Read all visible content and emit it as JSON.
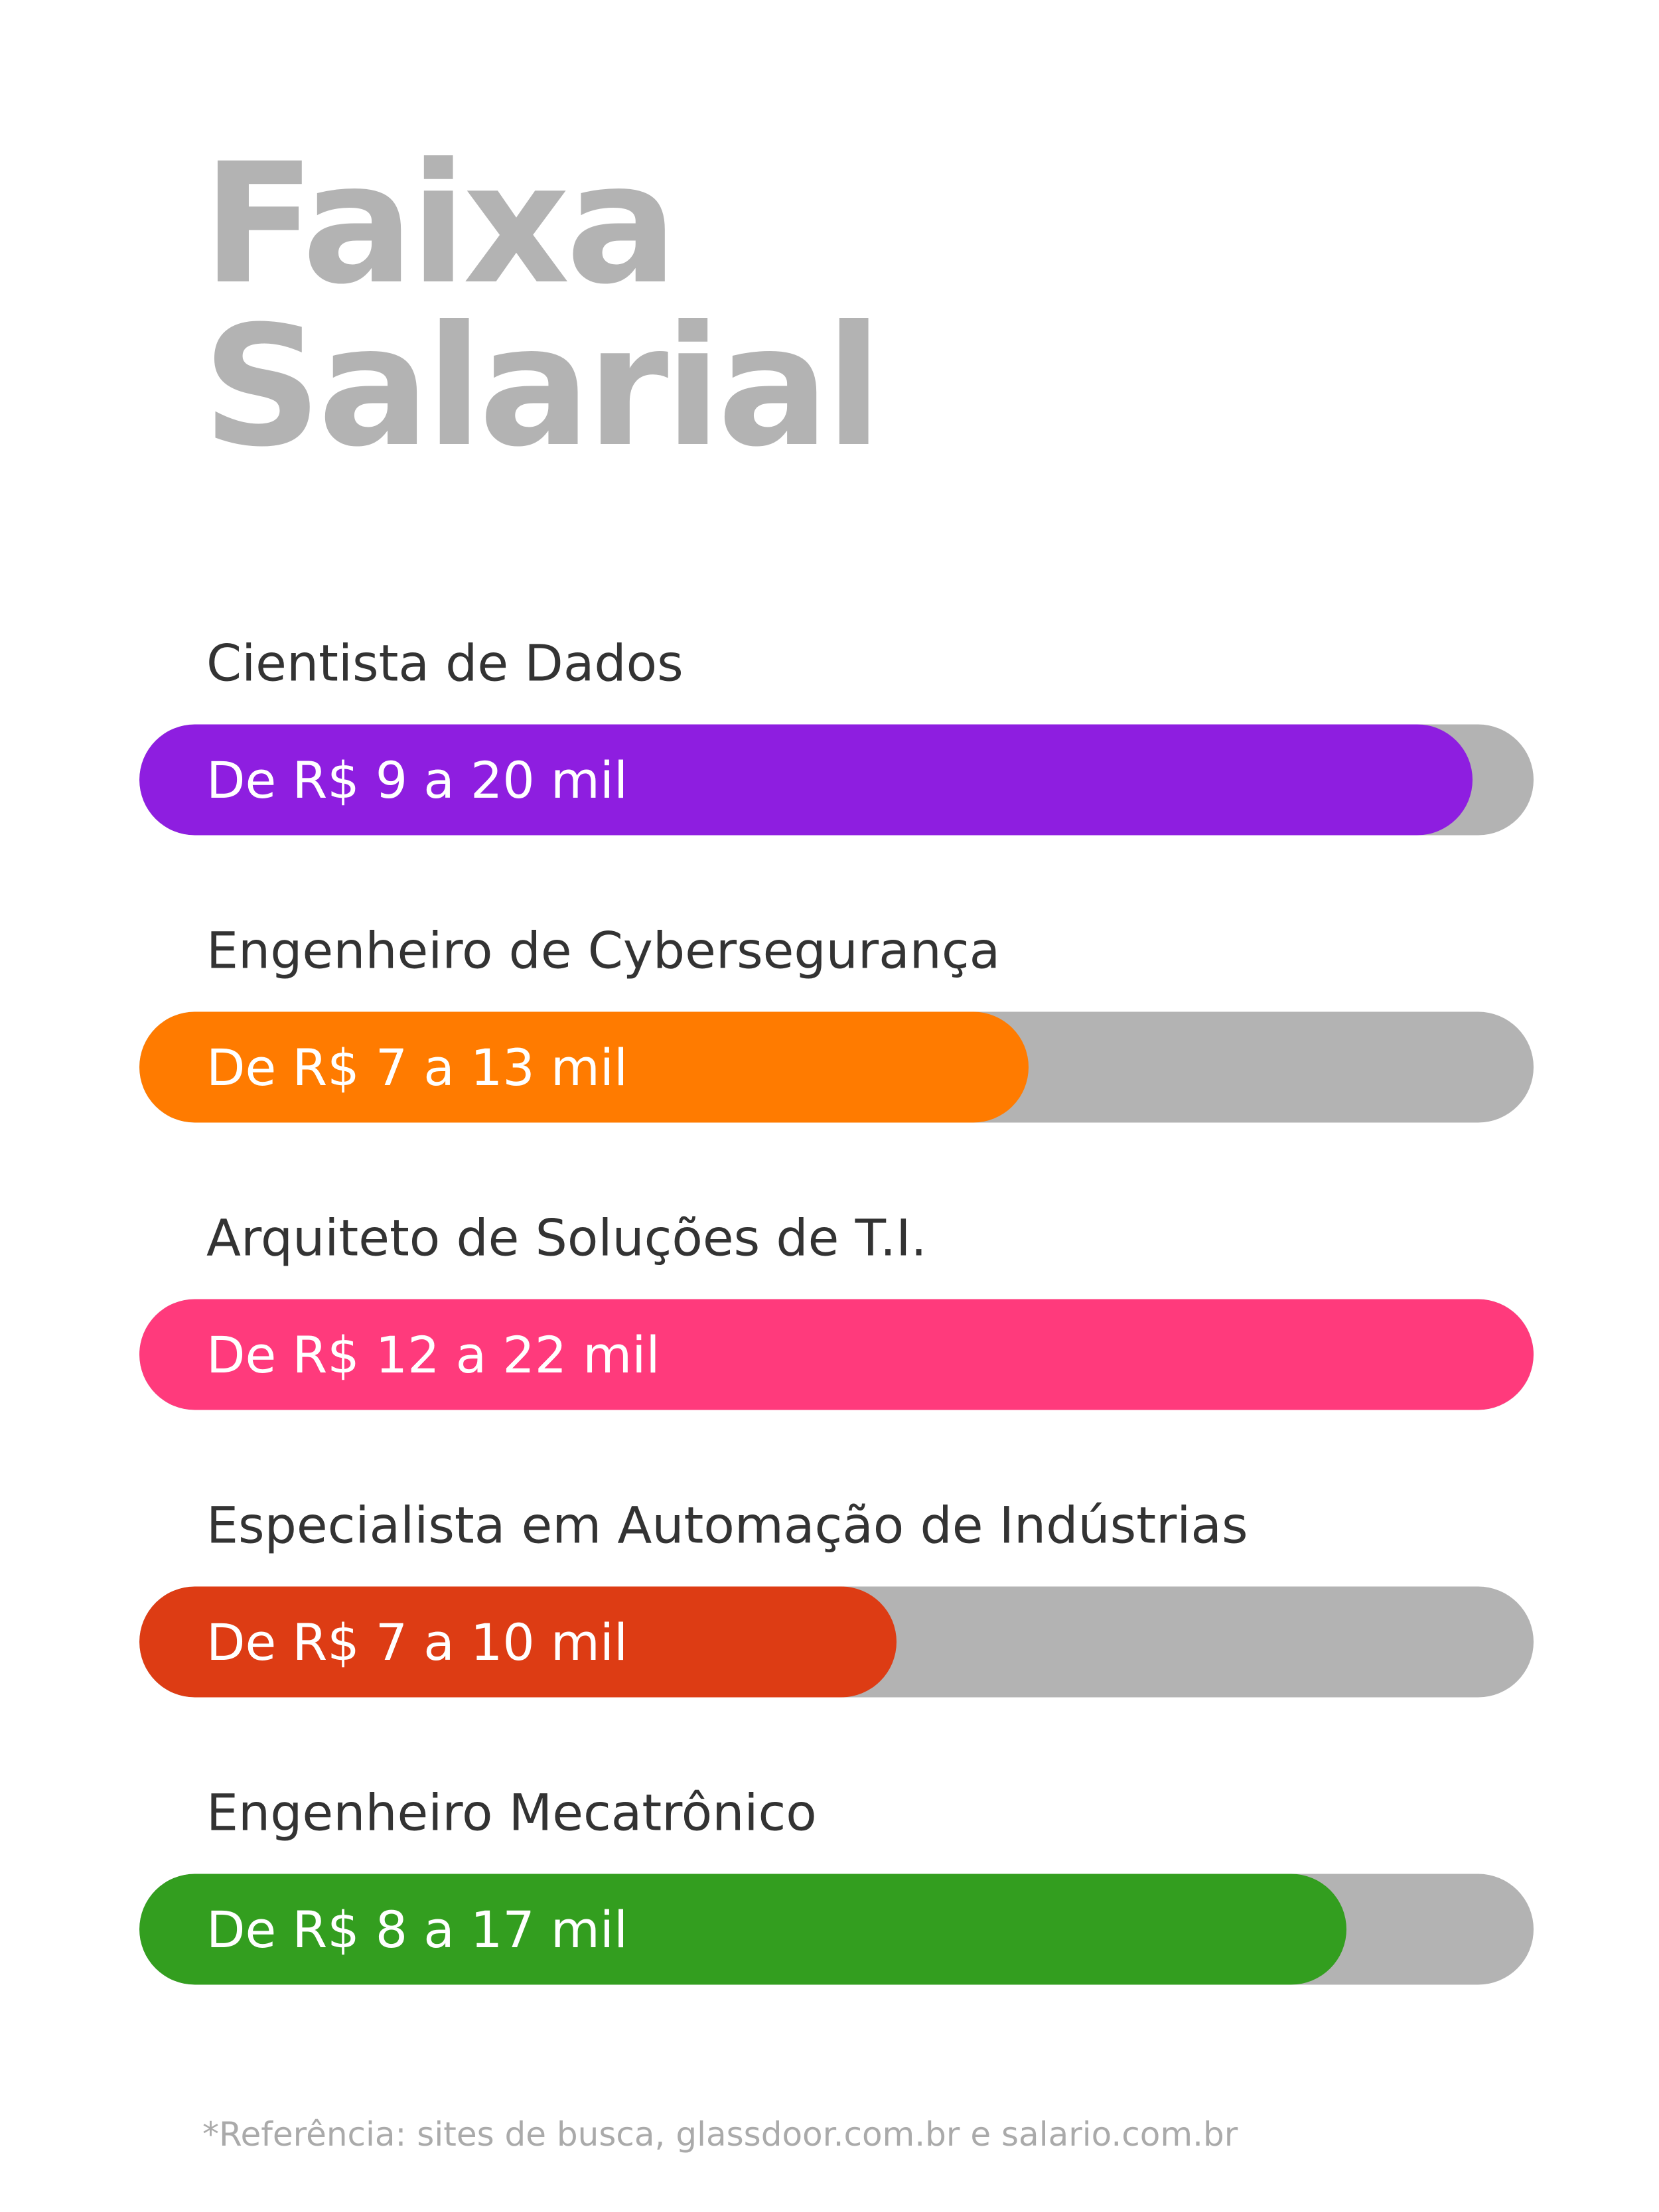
{
  "chart_data": {
    "type": "bar",
    "title": "Faixa Salarial",
    "categories": [
      "Cientista de Dados",
      "Engenheiro de Cybersegurança",
      "Arquiteto de Soluções de T.I.",
      "Especialista em Automação de Indústrias",
      "Engenheiro Mecatrônico"
    ],
    "labels": [
      "De R$ 9 a 20 mil",
      "De R$ 7 a 13 mil",
      "De R$ 12 a 22 mil",
      "De R$ 7 a 10 mil",
      "De R$ 8 a 17 mil"
    ],
    "values": [
      95.6,
      63.8,
      100,
      54.3,
      86.6
    ],
    "colors": [
      "#8e1ee0",
      "#ff7b00",
      "#ff3a7c",
      "#dd3c14",
      "#339e1f"
    ],
    "track_color": "#b3b3b3",
    "xlim": [
      0,
      100
    ],
    "footnote": "*Referência: sites de busca, glassdoor.com.br e salario.com.br"
  }
}
